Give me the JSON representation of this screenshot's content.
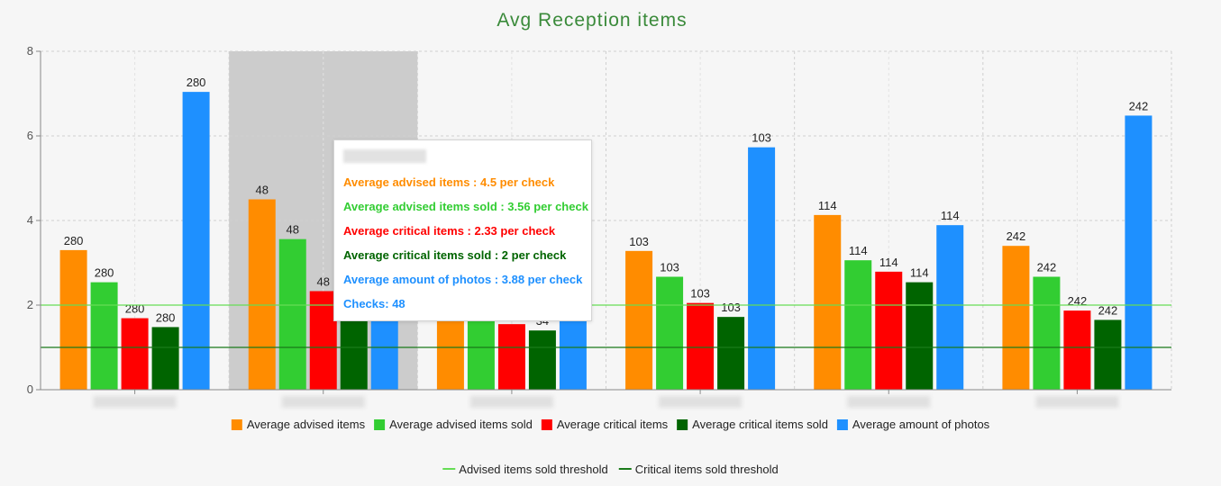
{
  "chart_data": {
    "type": "bar",
    "title": "Avg Reception items",
    "title_color": "#3a8a3a",
    "xlabel": "",
    "ylabel": "",
    "ylim": [
      0,
      8
    ],
    "yticks": [
      0,
      2,
      4,
      6,
      8
    ],
    "grid": true,
    "legend_position": "bottom",
    "categories": [
      "",
      "",
      "",
      "",
      "",
      ""
    ],
    "series": [
      {
        "name": "Average advised items",
        "color": "#ff8c00",
        "values": [
          3.3,
          4.5,
          1.75,
          3.28,
          4.13,
          3.4
        ],
        "labels": [
          "280",
          "48",
          "",
          "103",
          "114",
          "242"
        ]
      },
      {
        "name": "Average advised items sold",
        "color": "#32cd32",
        "values": [
          2.54,
          3.56,
          1.75,
          2.67,
          3.06,
          2.67
        ],
        "labels": [
          "280",
          "48",
          "",
          "103",
          "114",
          "242"
        ]
      },
      {
        "name": "Average critical items",
        "color": "#ff0000",
        "values": [
          1.69,
          2.33,
          1.55,
          2.05,
          2.79,
          1.87
        ],
        "labels": [
          "280",
          "48",
          "",
          "103",
          "114",
          "242"
        ]
      },
      {
        "name": "Average critical items sold",
        "color": "#006400",
        "values": [
          1.48,
          2.0,
          1.4,
          1.72,
          2.54,
          1.65
        ],
        "labels": [
          "280",
          "",
          "34",
          "103",
          "114",
          "242"
        ]
      },
      {
        "name": "Average amount of photos",
        "color": "#1e90ff",
        "values": [
          7.04,
          3.88,
          1.75,
          5.73,
          3.89,
          6.48
        ],
        "labels": [
          "280",
          "",
          "",
          "103",
          "114",
          "242"
        ]
      }
    ],
    "threshold_lines": [
      {
        "name": "Advised items sold threshold",
        "value": 2,
        "color": "#66dd55"
      },
      {
        "name": "Critical items sold threshold",
        "value": 1,
        "color": "#1a7a1a"
      }
    ],
    "highlighted_category_index": 1,
    "tooltip": {
      "category_index": 1,
      "rows": [
        {
          "text": "Average advised items : 4.5 per check",
          "color": "#ff8c00"
        },
        {
          "text": "Average advised items sold : 3.56 per check",
          "color": "#32cd32"
        },
        {
          "text": "Average critical items : 2.33 per check",
          "color": "#ff0000"
        },
        {
          "text": "Average critical items sold : 2 per check",
          "color": "#006400"
        },
        {
          "text": "Average amount of photos : 3.88 per check",
          "color": "#1e90ff"
        },
        {
          "text": "Checks: 48",
          "color": "#1e90ff"
        }
      ]
    }
  }
}
